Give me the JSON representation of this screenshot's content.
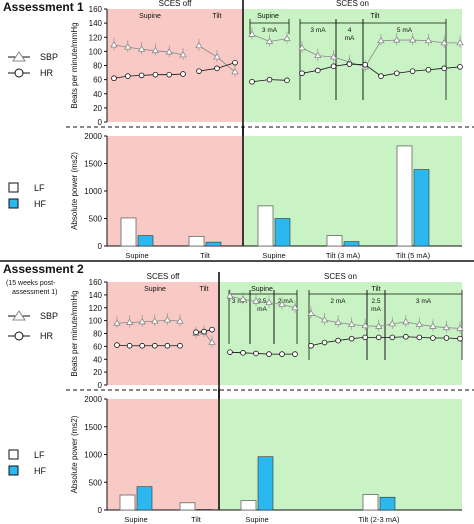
{
  "colors": {
    "scces_off_bg": "#f9c9c6",
    "scces_on_bg": "#c9f3c4",
    "lf_fill": "#ffffff",
    "hf_fill": "#2bb8ef",
    "line": "#111111",
    "sbp_marker": "#888888"
  },
  "assessment1": {
    "title": "Assessment 1",
    "subtitle": "",
    "legend_sbp": "SBP",
    "legend_hr": "HR",
    "legend_lf": "LF",
    "legend_hf": "HF",
    "header_off": "SCES off",
    "header_on": "SCES on",
    "off_segments": [
      "Supine",
      "Tilt"
    ],
    "on_segments": [
      "Supine",
      "Tilt"
    ],
    "on_subsegments": [
      "3 mA",
      "3 mA",
      "4 mA",
      "5 mA"
    ],
    "top_ylabel": "Beats per minute/mmHg",
    "bottom_ylabel": "Absolute power (ms2)",
    "bottom_xlabels": [
      "Supine",
      "Tilt",
      "Supine",
      "Tilt (3 mA)",
      "Tilt (5 mA)"
    ]
  },
  "assessment2": {
    "title": "Assessment 2",
    "subtitle": "(15 weeks post-assessment 1)",
    "legend_sbp": "SBP",
    "legend_hr": "HR",
    "legend_lf": "LF",
    "legend_hf": "HF",
    "header_off": "SCES off",
    "header_on": "SCES on",
    "off_segments": [
      "Supine",
      "Tilt"
    ],
    "on_segments": [
      "Supine",
      "Tilt"
    ],
    "on_subsegments": [
      "3 mA",
      "2.5 mA",
      "2 mA",
      "2 mA",
      "2.5 mA",
      "3 mA"
    ],
    "top_ylabel": "Beats per minute/mmHg",
    "bottom_ylabel": "Absolute power (ms2)",
    "bottom_xlabels": [
      "Supine",
      "Tilt",
      "Supine",
      "Tilt (2-3 mA)"
    ]
  },
  "chart_data": [
    {
      "type": "line",
      "panel": "Assessment 1 - SBP/HR",
      "ylabel": "Beats per minute/mmHg",
      "ylim": [
        0,
        160
      ],
      "yticks": [
        0,
        20,
        40,
        60,
        80,
        100,
        120,
        140,
        160
      ],
      "series": [
        {
          "name": "SBP",
          "off_supine": [
            109,
            106,
            103,
            101,
            99,
            95
          ],
          "off_tilt": [
            108,
            92,
            71
          ],
          "on_supine": [
            124,
            114,
            118
          ],
          "on_tilt": [
            105,
            94,
            92,
            85,
            78,
            115,
            116,
            116,
            115,
            112,
            112
          ]
        },
        {
          "name": "HR",
          "off_supine": [
            62,
            65,
            66,
            67,
            67,
            68
          ],
          "off_tilt": [
            72,
            76,
            84
          ],
          "on_supine": [
            57,
            60,
            59
          ],
          "on_tilt": [
            69,
            73,
            79,
            82,
            81,
            65,
            69,
            72,
            74,
            76,
            78
          ]
        }
      ]
    },
    {
      "type": "bar",
      "panel": "Assessment 1 - Absolute power",
      "ylabel": "Absolute power (ms2)",
      "ylim": [
        0,
        2000
      ],
      "yticks": [
        0,
        500,
        1000,
        1500,
        2000
      ],
      "categories": [
        "Supine",
        "Tilt",
        "Supine",
        "Tilt (3 mA)",
        "Tilt (5 mA)"
      ],
      "series": [
        {
          "name": "LF",
          "values": [
            510,
            175,
            730,
            190,
            1820
          ]
        },
        {
          "name": "HF",
          "values": [
            190,
            70,
            500,
            80,
            1390
          ]
        }
      ]
    },
    {
      "type": "line",
      "panel": "Assessment 2 - SBP/HR",
      "ylabel": "Beats per minute/mmHg",
      "ylim": [
        0,
        160
      ],
      "yticks": [
        0,
        20,
        40,
        60,
        80,
        100,
        120,
        140,
        160
      ],
      "series": [
        {
          "name": "SBP",
          "off_supine": [
            96,
            97,
            98,
            99,
            101,
            99
          ],
          "off_tilt": [
            80,
            82,
            66
          ],
          "on_supine": [
            138,
            133,
            130,
            128,
            125,
            120
          ],
          "on_tilt": [
            111,
            101,
            97,
            94,
            92,
            91,
            95,
            98,
            94,
            91,
            89,
            88
          ]
        },
        {
          "name": "HR",
          "off_supine": [
            62,
            61,
            61,
            61,
            61,
            61
          ],
          "off_tilt": [
            82,
            83,
            86
          ],
          "on_supine": [
            51,
            50,
            49,
            48,
            48,
            48
          ],
          "on_tilt": [
            61,
            66,
            69,
            72,
            74,
            74,
            74,
            75,
            74,
            73,
            73,
            72
          ]
        }
      ]
    },
    {
      "type": "bar",
      "panel": "Assessment 2 - Absolute power",
      "ylabel": "Absolute power (ms2)",
      "ylim": [
        0,
        2000
      ],
      "yticks": [
        0,
        500,
        1000,
        1500,
        2000
      ],
      "categories": [
        "Supine",
        "Tilt",
        "Supine",
        "Tilt (2-3 mA)"
      ],
      "series": [
        {
          "name": "LF",
          "values": [
            270,
            130,
            170,
            280
          ]
        },
        {
          "name": "HF",
          "values": [
            420,
            10,
            960,
            230
          ]
        }
      ]
    }
  ]
}
